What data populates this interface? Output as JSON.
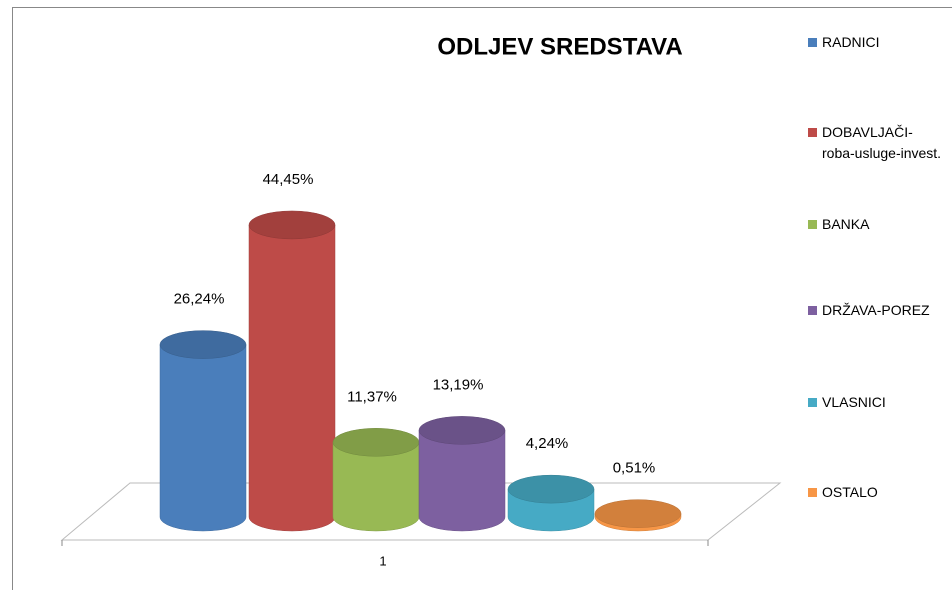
{
  "chart_data": {
    "type": "bar3d",
    "title": "ODLJEV SREDSTAVA",
    "categories": [
      "1"
    ],
    "series": [
      {
        "name": "RADNICI",
        "color": "#4a7ebb",
        "values": [
          26.24
        ],
        "value_labels": [
          "26,24%"
        ]
      },
      {
        "name": "DOBAVLJAČI-roba-usluge-invest.",
        "color": "#be4b48",
        "values": [
          44.45
        ],
        "value_labels": [
          "44,45%"
        ]
      },
      {
        "name": "BANKA",
        "color": "#98b954",
        "values": [
          11.37
        ],
        "value_labels": [
          "11,37%"
        ]
      },
      {
        "name": "DRŽAVA-POREZ",
        "color": "#7d60a0",
        "values": [
          13.19
        ],
        "value_labels": [
          "13,19%"
        ]
      },
      {
        "name": "VLASNICI",
        "color": "#46aac5",
        "values": [
          4.24
        ],
        "value_labels": [
          "4,24%"
        ]
      },
      {
        "name": "OSTALO",
        "color": "#f79646",
        "values": [
          0.51
        ],
        "value_labels": [
          "0,51%"
        ]
      }
    ],
    "legend": "right"
  }
}
